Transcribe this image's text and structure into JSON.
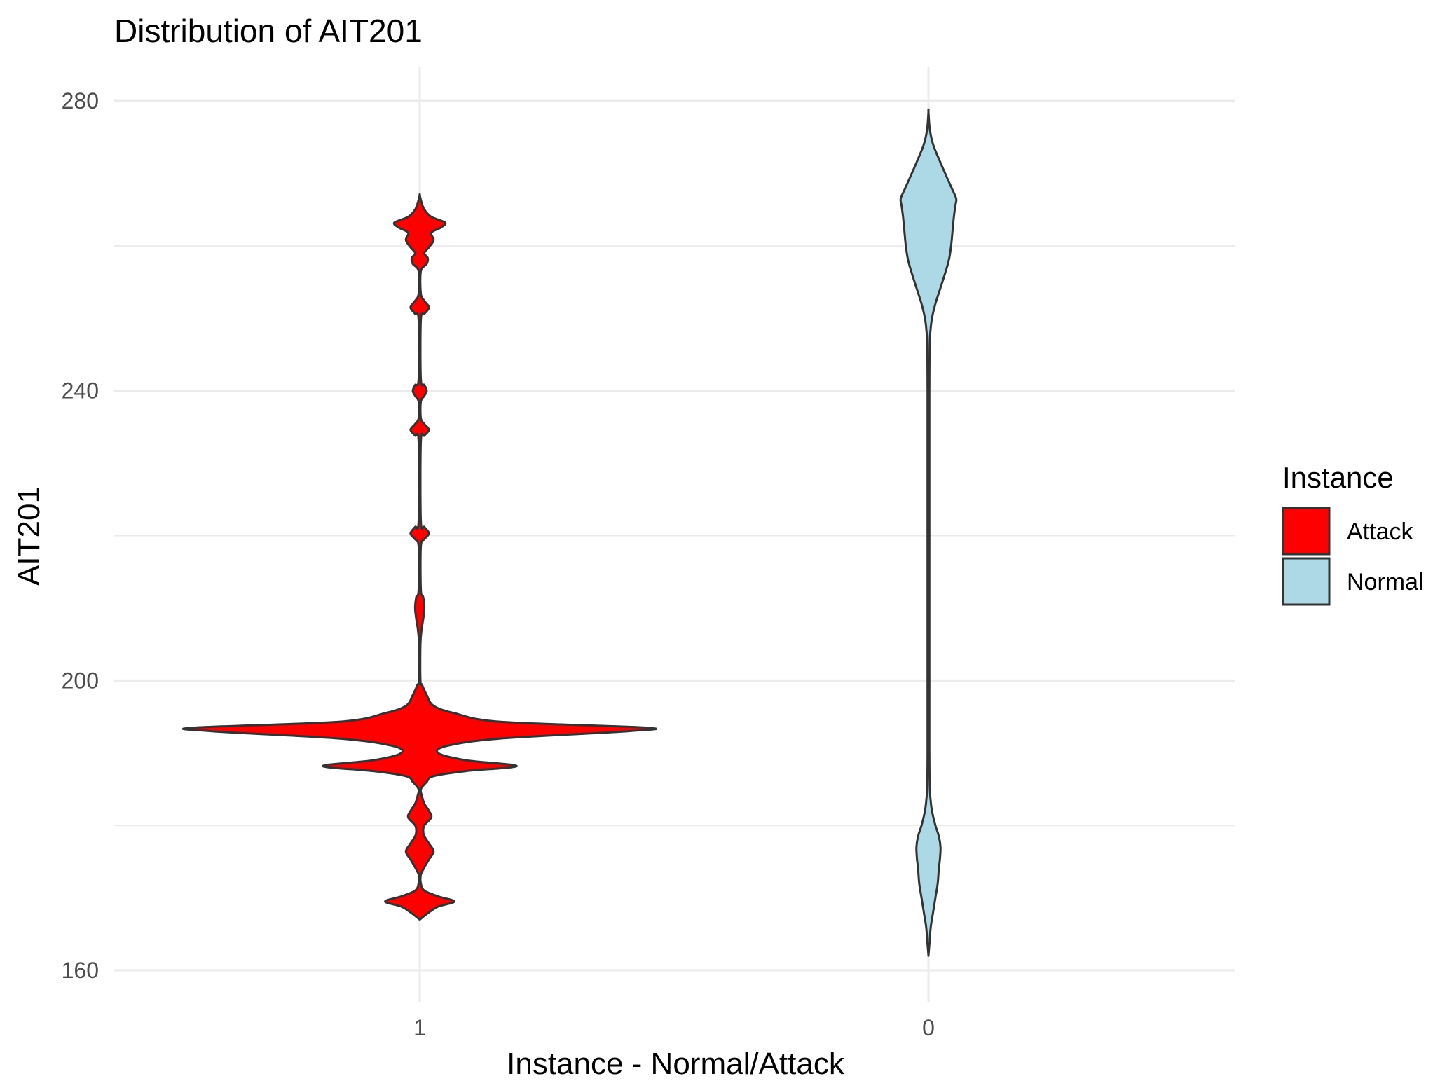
{
  "chart_data": {
    "type": "violin",
    "title": "Distribution of AIT201",
    "xlabel": "Instance - Normal/Attack",
    "ylabel": "AIT201",
    "categories": [
      "1",
      "0"
    ],
    "ylim": [
      155,
      285
    ],
    "y_ticks": [
      160,
      200,
      240,
      280
    ],
    "y_minor_ticks": [
      180,
      220,
      260
    ],
    "grid": true,
    "legend": {
      "title": "Instance",
      "position": "right",
      "entries": [
        {
          "label": "Attack",
          "color": "#ff0000"
        },
        {
          "label": "Normal",
          "color": "#add8e6"
        }
      ]
    },
    "series": [
      {
        "category": "1",
        "group": "Attack",
        "color": "#ff0000",
        "density_profile": [
          [
            167.0,
            0.0
          ],
          [
            168.0,
            0.04
          ],
          [
            168.8,
            0.08
          ],
          [
            169.5,
            0.15
          ],
          [
            170.2,
            0.08
          ],
          [
            171.0,
            0.02
          ],
          [
            172.0,
            0.005
          ],
          [
            173.2,
            0.005
          ],
          [
            174.2,
            0.02
          ],
          [
            175.3,
            0.04
          ],
          [
            176.4,
            0.06
          ],
          [
            177.5,
            0.04
          ],
          [
            178.5,
            0.02
          ],
          [
            179.2,
            0.015
          ],
          [
            180.0,
            0.02
          ],
          [
            181.1,
            0.05
          ],
          [
            182.0,
            0.04
          ],
          [
            183.0,
            0.02
          ],
          [
            184.0,
            0.01
          ],
          [
            185.0,
            0.005
          ],
          [
            186.0,
            0.03
          ],
          [
            186.8,
            0.06
          ],
          [
            187.5,
            0.2
          ],
          [
            188.2,
            0.42
          ],
          [
            189.0,
            0.2
          ],
          [
            190.0,
            0.08
          ],
          [
            191.0,
            0.12
          ],
          [
            192.0,
            0.35
          ],
          [
            193.0,
            0.9
          ],
          [
            193.5,
            0.98
          ],
          [
            194.3,
            0.35
          ],
          [
            195.5,
            0.15
          ],
          [
            196.5,
            0.06
          ],
          [
            198.0,
            0.03
          ],
          [
            199.4,
            0.01
          ],
          [
            200.0,
            0.003
          ],
          [
            205.0,
            0.003
          ],
          [
            207.0,
            0.008
          ],
          [
            208.5,
            0.015
          ],
          [
            210.0,
            0.02
          ],
          [
            211.5,
            0.015
          ],
          [
            212.5,
            0.005
          ],
          [
            218.5,
            0.005
          ],
          [
            219.5,
            0.02
          ],
          [
            220.3,
            0.04
          ],
          [
            221.2,
            0.02
          ],
          [
            222.0,
            0.005
          ],
          [
            233.0,
            0.005
          ],
          [
            233.8,
            0.02
          ],
          [
            234.6,
            0.04
          ],
          [
            235.4,
            0.02
          ],
          [
            236.2,
            0.005
          ],
          [
            238.5,
            0.005
          ],
          [
            239.3,
            0.02
          ],
          [
            240.0,
            0.03
          ],
          [
            240.8,
            0.02
          ],
          [
            241.6,
            0.005
          ],
          [
            249.8,
            0.005
          ],
          [
            250.6,
            0.02
          ],
          [
            251.5,
            0.04
          ],
          [
            252.4,
            0.02
          ],
          [
            253.4,
            0.005
          ],
          [
            256.5,
            0.005
          ],
          [
            257.5,
            0.03
          ],
          [
            258.3,
            0.035
          ],
          [
            259.0,
            0.02
          ],
          [
            259.8,
            0.04
          ],
          [
            260.8,
            0.06
          ],
          [
            261.8,
            0.05
          ],
          [
            262.5,
            0.09
          ],
          [
            263.2,
            0.11
          ],
          [
            264.0,
            0.05
          ],
          [
            265.0,
            0.02
          ],
          [
            266.0,
            0.008
          ],
          [
            267.0,
            0.0
          ]
        ]
      },
      {
        "category": "0",
        "group": "Normal",
        "color": "#add8e6",
        "density_profile": [
          [
            162.0,
            0.0
          ],
          [
            164.0,
            0.005
          ],
          [
            166.0,
            0.01
          ],
          [
            168.0,
            0.02
          ],
          [
            170.0,
            0.03
          ],
          [
            172.0,
            0.04
          ],
          [
            174.0,
            0.045
          ],
          [
            175.5,
            0.05
          ],
          [
            177.0,
            0.052
          ],
          [
            178.5,
            0.045
          ],
          [
            180.0,
            0.03
          ],
          [
            182.0,
            0.015
          ],
          [
            184.0,
            0.008
          ],
          [
            186.0,
            0.005
          ],
          [
            190.0,
            0.004
          ],
          [
            200.0,
            0.004
          ],
          [
            210.0,
            0.004
          ],
          [
            220.0,
            0.004
          ],
          [
            230.0,
            0.004
          ],
          [
            240.0,
            0.004
          ],
          [
            246.0,
            0.005
          ],
          [
            248.0,
            0.008
          ],
          [
            250.0,
            0.015
          ],
          [
            252.0,
            0.03
          ],
          [
            254.0,
            0.05
          ],
          [
            256.0,
            0.07
          ],
          [
            258.0,
            0.088
          ],
          [
            260.0,
            0.098
          ],
          [
            262.0,
            0.104
          ],
          [
            264.0,
            0.11
          ],
          [
            265.5,
            0.116
          ],
          [
            266.5,
            0.12
          ],
          [
            268.0,
            0.1
          ],
          [
            270.0,
            0.072
          ],
          [
            272.0,
            0.045
          ],
          [
            274.0,
            0.02
          ],
          [
            276.0,
            0.006
          ],
          [
            278.5,
            0.0
          ]
        ]
      }
    ]
  }
}
